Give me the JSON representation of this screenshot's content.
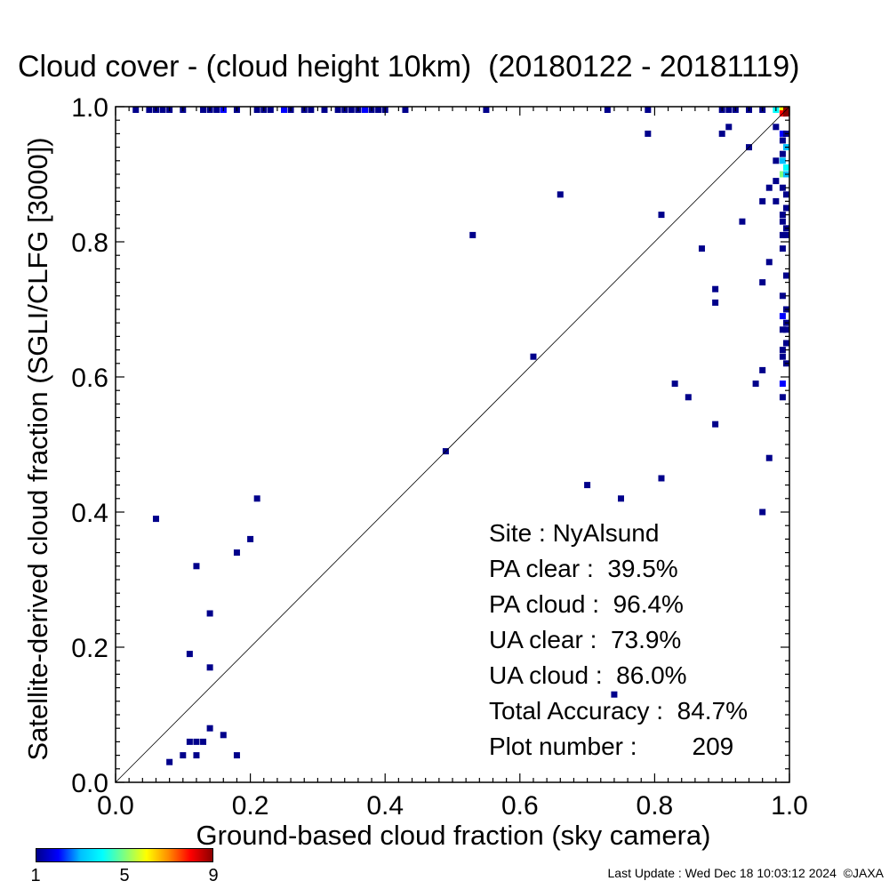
{
  "title": "Cloud cover - (cloud height 10km)  (20180122 - 20181119)",
  "colorbar": {
    "colors": [
      "#00008b",
      "#0000ff",
      "#00bfff",
      "#00ffff",
      "#7fff7f",
      "#ffff00",
      "#ff8c00",
      "#ff0000",
      "#8b0000"
    ],
    "labels": [
      "1",
      "5",
      "9"
    ]
  },
  "stats": {
    "site": "Site : NyAlsund",
    "pa_clear": "PA clear :  39.5%",
    "pa_cloud": "PA cloud :  96.4%",
    "ua_clear": "UA clear :  73.9%",
    "ua_cloud": "UA cloud :  86.0%",
    "total": "Total Accuracy :  84.7%",
    "plot_number_label": "Plot number :",
    "plot_number": "209"
  },
  "footer": "Last Update : Wed Dec 18 10:03:12 2024  ©JAXA",
  "chart_data": {
    "type": "heatmap",
    "xlabel": "Ground-based cloud fraction (sky camera)",
    "ylabel": "Satellite-derived cloud fraction (SGLI/CLFG [3000])",
    "xlim": [
      0.0,
      1.0
    ],
    "ylim": [
      0.0,
      1.0
    ],
    "xticks": [
      "0.0",
      "0.2",
      "0.4",
      "0.6",
      "0.8",
      "1.0"
    ],
    "yticks": [
      "0.0",
      "0.2",
      "0.4",
      "0.6",
      "0.8",
      "1.0"
    ],
    "grid": false,
    "diagonal": true,
    "points": [
      {
        "x": 0.03,
        "y": 1.0,
        "c": 1
      },
      {
        "x": 0.05,
        "y": 1.0,
        "c": 1
      },
      {
        "x": 0.06,
        "y": 1.0,
        "c": 1
      },
      {
        "x": 0.07,
        "y": 1.0,
        "c": 1
      },
      {
        "x": 0.08,
        "y": 1.0,
        "c": 1
      },
      {
        "x": 0.1,
        "y": 1.0,
        "c": 1
      },
      {
        "x": 0.13,
        "y": 1.0,
        "c": 1
      },
      {
        "x": 0.14,
        "y": 1.0,
        "c": 1
      },
      {
        "x": 0.15,
        "y": 1.0,
        "c": 1
      },
      {
        "x": 0.16,
        "y": 1.0,
        "c": 1
      },
      {
        "x": 0.18,
        "y": 1.0,
        "c": 1
      },
      {
        "x": 0.21,
        "y": 1.0,
        "c": 1
      },
      {
        "x": 0.22,
        "y": 1.0,
        "c": 1
      },
      {
        "x": 0.23,
        "y": 1.0,
        "c": 1
      },
      {
        "x": 0.26,
        "y": 1.0,
        "c": 1
      },
      {
        "x": 0.28,
        "y": 1.0,
        "c": 1
      },
      {
        "x": 0.29,
        "y": 1.0,
        "c": 1
      },
      {
        "x": 0.31,
        "y": 1.0,
        "c": 1
      },
      {
        "x": 0.33,
        "y": 1.0,
        "c": 1
      },
      {
        "x": 0.34,
        "y": 1.0,
        "c": 1
      },
      {
        "x": 0.35,
        "y": 1.0,
        "c": 1
      },
      {
        "x": 0.36,
        "y": 1.0,
        "c": 1
      },
      {
        "x": 0.37,
        "y": 1.0,
        "c": 1
      },
      {
        "x": 0.38,
        "y": 1.0,
        "c": 1
      },
      {
        "x": 0.39,
        "y": 1.0,
        "c": 1
      },
      {
        "x": 0.4,
        "y": 1.0,
        "c": 1
      },
      {
        "x": 0.43,
        "y": 1.0,
        "c": 1
      },
      {
        "x": 0.55,
        "y": 1.0,
        "c": 1
      },
      {
        "x": 0.73,
        "y": 1.0,
        "c": 1
      },
      {
        "x": 0.79,
        "y": 1.0,
        "c": 1
      },
      {
        "x": 0.9,
        "y": 1.0,
        "c": 1
      },
      {
        "x": 0.91,
        "y": 1.0,
        "c": 1
      },
      {
        "x": 0.92,
        "y": 1.0,
        "c": 1
      },
      {
        "x": 0.94,
        "y": 1.0,
        "c": 1
      },
      {
        "x": 0.96,
        "y": 1.0,
        "c": 1
      },
      {
        "x": 0.98,
        "y": 1.0,
        "c": 4
      },
      {
        "x": 0.99,
        "y": 1.0,
        "c": 6
      },
      {
        "x": 1.0,
        "y": 1.0,
        "c": 9
      },
      {
        "x": 0.99,
        "y": 0.99,
        "c": 8
      },
      {
        "x": 1.0,
        "y": 0.99,
        "c": 9
      },
      {
        "x": 0.16,
        "y": 1.0,
        "c": 2
      },
      {
        "x": 0.25,
        "y": 1.0,
        "c": 2
      },
      {
        "x": 0.37,
        "y": 1.0,
        "c": 2
      },
      {
        "x": 0.79,
        "y": 0.96,
        "c": 1
      },
      {
        "x": 0.91,
        "y": 0.97,
        "c": 1
      },
      {
        "x": 0.9,
        "y": 0.96,
        "c": 1
      },
      {
        "x": 0.94,
        "y": 0.94,
        "c": 1
      },
      {
        "x": 0.66,
        "y": 0.87,
        "c": 1
      },
      {
        "x": 0.81,
        "y": 0.84,
        "c": 1
      },
      {
        "x": 0.53,
        "y": 0.81,
        "c": 1
      },
      {
        "x": 0.93,
        "y": 0.83,
        "c": 1
      },
      {
        "x": 0.87,
        "y": 0.79,
        "c": 1
      },
      {
        "x": 0.89,
        "y": 0.73,
        "c": 1
      },
      {
        "x": 0.89,
        "y": 0.71,
        "c": 1
      },
      {
        "x": 0.96,
        "y": 0.74,
        "c": 1
      },
      {
        "x": 0.97,
        "y": 0.77,
        "c": 1
      },
      {
        "x": 0.62,
        "y": 0.63,
        "c": 1
      },
      {
        "x": 0.96,
        "y": 0.61,
        "c": 1
      },
      {
        "x": 0.83,
        "y": 0.59,
        "c": 1
      },
      {
        "x": 0.85,
        "y": 0.57,
        "c": 1
      },
      {
        "x": 0.95,
        "y": 0.59,
        "c": 1
      },
      {
        "x": 0.89,
        "y": 0.53,
        "c": 1
      },
      {
        "x": 0.49,
        "y": 0.49,
        "c": 1
      },
      {
        "x": 0.97,
        "y": 0.48,
        "c": 1
      },
      {
        "x": 0.7,
        "y": 0.44,
        "c": 1
      },
      {
        "x": 0.75,
        "y": 0.42,
        "c": 1
      },
      {
        "x": 0.81,
        "y": 0.45,
        "c": 1
      },
      {
        "x": 0.96,
        "y": 0.4,
        "c": 1
      },
      {
        "x": 0.74,
        "y": 0.13,
        "c": 1
      },
      {
        "x": 0.98,
        "y": 0.97,
        "c": 1
      },
      {
        "x": 0.99,
        "y": 0.96,
        "c": 2
      },
      {
        "x": 1.0,
        "y": 0.96,
        "c": 1
      },
      {
        "x": 0.99,
        "y": 0.95,
        "c": 1
      },
      {
        "x": 1.0,
        "y": 0.94,
        "c": 3
      },
      {
        "x": 0.99,
        "y": 0.93,
        "c": 1
      },
      {
        "x": 0.98,
        "y": 0.92,
        "c": 1
      },
      {
        "x": 0.99,
        "y": 0.92,
        "c": 3
      },
      {
        "x": 1.0,
        "y": 0.91,
        "c": 4
      },
      {
        "x": 0.99,
        "y": 0.9,
        "c": 5
      },
      {
        "x": 1.0,
        "y": 0.9,
        "c": 3
      },
      {
        "x": 0.98,
        "y": 0.89,
        "c": 1
      },
      {
        "x": 0.97,
        "y": 0.88,
        "c": 1
      },
      {
        "x": 0.99,
        "y": 0.88,
        "c": 1
      },
      {
        "x": 1.0,
        "y": 0.87,
        "c": 1
      },
      {
        "x": 0.96,
        "y": 0.86,
        "c": 1
      },
      {
        "x": 0.98,
        "y": 0.86,
        "c": 1
      },
      {
        "x": 1.0,
        "y": 0.85,
        "c": 1
      },
      {
        "x": 0.99,
        "y": 0.84,
        "c": 1
      },
      {
        "x": 0.99,
        "y": 0.83,
        "c": 1
      },
      {
        "x": 1.0,
        "y": 0.82,
        "c": 1
      },
      {
        "x": 0.99,
        "y": 0.81,
        "c": 1
      },
      {
        "x": 1.0,
        "y": 0.81,
        "c": 1
      },
      {
        "x": 0.99,
        "y": 0.79,
        "c": 1
      },
      {
        "x": 1.0,
        "y": 0.75,
        "c": 1
      },
      {
        "x": 0.99,
        "y": 0.72,
        "c": 1
      },
      {
        "x": 1.0,
        "y": 0.7,
        "c": 1
      },
      {
        "x": 0.99,
        "y": 0.69,
        "c": 2
      },
      {
        "x": 1.0,
        "y": 0.68,
        "c": 1
      },
      {
        "x": 0.99,
        "y": 0.67,
        "c": 1
      },
      {
        "x": 1.0,
        "y": 0.67,
        "c": 1
      },
      {
        "x": 1.0,
        "y": 0.65,
        "c": 1
      },
      {
        "x": 0.99,
        "y": 0.64,
        "c": 1
      },
      {
        "x": 0.99,
        "y": 0.63,
        "c": 1
      },
      {
        "x": 1.0,
        "y": 0.62,
        "c": 1
      },
      {
        "x": 0.99,
        "y": 0.59,
        "c": 2
      },
      {
        "x": 0.99,
        "y": 0.57,
        "c": 1
      },
      {
        "x": 0.06,
        "y": 0.39,
        "c": 1
      },
      {
        "x": 0.21,
        "y": 0.42,
        "c": 1
      },
      {
        "x": 0.2,
        "y": 0.36,
        "c": 1
      },
      {
        "x": 0.18,
        "y": 0.34,
        "c": 1
      },
      {
        "x": 0.12,
        "y": 0.32,
        "c": 1
      },
      {
        "x": 0.14,
        "y": 0.25,
        "c": 1
      },
      {
        "x": 0.11,
        "y": 0.19,
        "c": 1
      },
      {
        "x": 0.14,
        "y": 0.17,
        "c": 1
      },
      {
        "x": 0.14,
        "y": 0.08,
        "c": 1
      },
      {
        "x": 0.16,
        "y": 0.07,
        "c": 1
      },
      {
        "x": 0.11,
        "y": 0.06,
        "c": 1
      },
      {
        "x": 0.12,
        "y": 0.06,
        "c": 1
      },
      {
        "x": 0.13,
        "y": 0.06,
        "c": 1
      },
      {
        "x": 0.1,
        "y": 0.04,
        "c": 1
      },
      {
        "x": 0.12,
        "y": 0.04,
        "c": 1
      },
      {
        "x": 0.18,
        "y": 0.04,
        "c": 1
      },
      {
        "x": 0.08,
        "y": 0.03,
        "c": 1
      }
    ]
  }
}
